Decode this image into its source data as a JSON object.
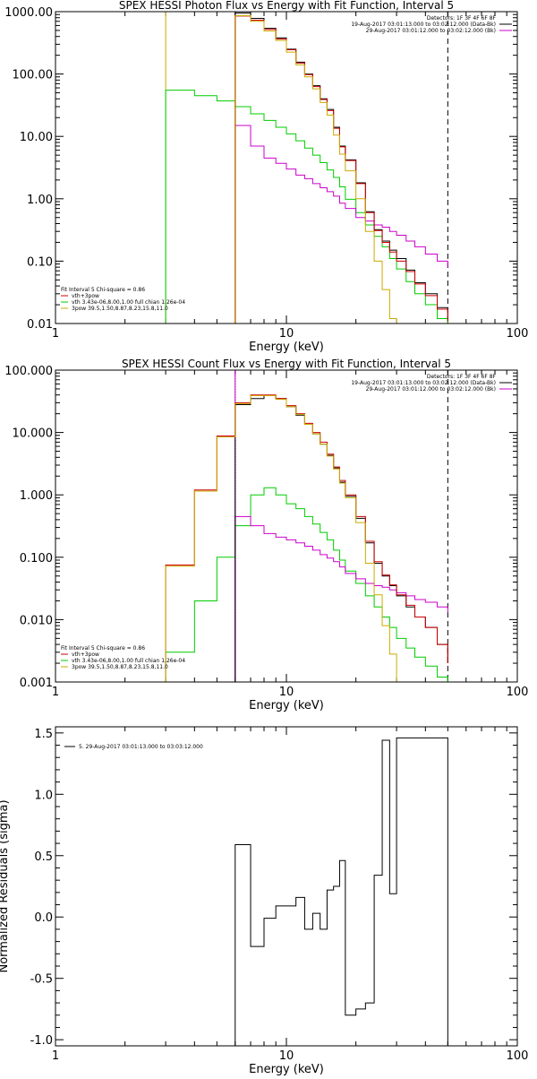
{
  "chart_data": [
    {
      "type": "line",
      "title": "SPEX HESSI Photon Flux vs Energy with Fit Function, Interval 5",
      "xlabel": "Energy (keV)",
      "ylabel": "",
      "x_scale": "log",
      "y_scale": "log",
      "xlim": [
        1,
        100
      ],
      "ylim": [
        0.01,
        1000
      ],
      "x_ticks": [
        {
          "value": 1,
          "label": "1"
        },
        {
          "value": 10,
          "label": "10"
        },
        {
          "value": 100,
          "label": "100"
        }
      ],
      "y_ticks": [
        {
          "value": 0.01,
          "label": "0.01"
        },
        {
          "value": 0.1,
          "label": "0.10"
        },
        {
          "value": 1,
          "label": "1.00"
        },
        {
          "value": 10,
          "label": "10.00"
        },
        {
          "value": 100,
          "label": "100.00"
        },
        {
          "value": 1000,
          "label": "1000.00"
        }
      ],
      "vertical_lines": [
        {
          "x": 3,
          "color": "#ccaa00",
          "style": "solid"
        },
        {
          "x": 6,
          "color": "#000000",
          "style": "dotted"
        },
        {
          "x": 6,
          "color": "#cc00cc",
          "style": "solid"
        },
        {
          "x": 50,
          "color": "#000000",
          "style": "dashed"
        }
      ],
      "legend_topright": [
        {
          "text": "Detectors: 1F 3F 4F 6F 8F",
          "color": "#000000"
        },
        {
          "text": "19-Aug-2017 03:01:13.000 to 03:02:12.000 (Data-Bk)",
          "color": "#000000",
          "swatch": "#000000"
        },
        {
          "text": "29-Aug-2017 03:01:12.000 to 03:02:12.000 (Bk)",
          "color": "#000000",
          "swatch": "#cc00cc"
        }
      ],
      "legend_bottomleft": [
        {
          "text": "Fit Interval 5   Chi-square = 0.86",
          "swatch": ""
        },
        {
          "text": "vth+3pow",
          "swatch": "#cc0000"
        },
        {
          "text": "vth 3.43e-06,8.00,1.00   full chian 1.26e-04",
          "swatch": "#00cc00"
        },
        {
          "text": "3pow 39.5,1.50,8.87,8.23,15.8,11.0",
          "swatch": "#ccaa00"
        }
      ],
      "series": [
        {
          "color": "#00cc00",
          "edges": [
            3,
            4,
            5,
            6,
            7,
            8,
            9,
            10,
            11,
            12,
            13,
            14,
            15,
            16,
            17,
            18,
            20,
            22,
            24,
            26,
            28,
            30,
            33,
            36,
            40,
            45,
            50
          ],
          "values": [
            55,
            45,
            37,
            30,
            23,
            18,
            14,
            11,
            8.5,
            6.5,
            5,
            3.8,
            2.9,
            2.2,
            1.55,
            0.98,
            0.6,
            0.38,
            0.25,
            0.17,
            0.11,
            0.075,
            0.047,
            0.03,
            0.02,
            0.012
          ]
        },
        {
          "color": "#cc00cc",
          "edges": [
            6,
            7,
            8,
            9,
            10,
            11,
            12,
            13,
            14,
            15,
            16,
            17,
            18,
            20,
            22,
            24,
            26,
            28,
            30,
            33,
            36,
            40,
            45,
            50
          ],
          "values": [
            15,
            7,
            4.5,
            3.7,
            3,
            2.4,
            2.1,
            1.75,
            1.5,
            1.3,
            1.1,
            0.85,
            0.7,
            0.5,
            0.44,
            0.38,
            0.35,
            0.3,
            0.26,
            0.21,
            0.17,
            0.13,
            0.1,
            0.08
          ]
        },
        {
          "color": "#000000",
          "edges": [
            6,
            7,
            8,
            9,
            10,
            11,
            12,
            13,
            14,
            15,
            16,
            17,
            18,
            20,
            22,
            24,
            26,
            28,
            30,
            33,
            36,
            40,
            45,
            50
          ],
          "values": [
            950,
            780,
            540,
            380,
            250,
            155,
            100,
            65,
            40,
            27,
            14,
            7,
            4.2,
            1.8,
            0.62,
            0.32,
            0.21,
            0.15,
            0.11,
            0.072,
            0.045,
            0.03,
            0.018,
            0.012
          ]
        },
        {
          "color": "#cc0000",
          "edges": [
            6,
            7,
            8,
            9,
            10,
            11,
            12,
            13,
            14,
            15,
            16,
            17,
            18,
            20,
            22,
            24,
            26,
            28,
            30,
            33,
            36,
            40,
            45,
            50
          ],
          "values": [
            850,
            730,
            520,
            365,
            245,
            150,
            98,
            63,
            39,
            26,
            13.5,
            6.8,
            4.1,
            1.75,
            0.6,
            0.31,
            0.2,
            0.14,
            0.1,
            0.068,
            0.043,
            0.028,
            0.017,
            0.011
          ]
        },
        {
          "color": "#ccaa00",
          "edges": [
            6,
            7,
            8,
            9,
            10,
            11,
            12,
            13,
            14,
            15,
            16,
            17,
            18,
            20,
            22,
            24,
            26,
            28,
            30
          ],
          "values": [
            860,
            700,
            490,
            345,
            225,
            140,
            90,
            58,
            35,
            22,
            10.5,
            5.2,
            2.8,
            1,
            0.3,
            0.1,
            0.035,
            0.012,
            0.005
          ]
        }
      ]
    },
    {
      "type": "line",
      "title": "SPEX HESSI Count Flux vs Energy with Fit Function, Interval 5",
      "xlabel": "Energy (keV)",
      "ylabel": "",
      "x_scale": "log",
      "y_scale": "log",
      "xlim": [
        1,
        100
      ],
      "ylim": [
        0.001,
        100
      ],
      "x_ticks": [
        {
          "value": 1,
          "label": "1"
        },
        {
          "value": 10,
          "label": "10"
        },
        {
          "value": 100,
          "label": "100"
        }
      ],
      "y_ticks": [
        {
          "value": 0.001,
          "label": "0.001"
        },
        {
          "value": 0.01,
          "label": "0.010"
        },
        {
          "value": 0.1,
          "label": "0.100"
        },
        {
          "value": 1,
          "label": "1.000"
        },
        {
          "value": 10,
          "label": "10.000"
        },
        {
          "value": 100,
          "label": "100.000"
        }
      ],
      "vertical_lines": [
        {
          "x": 6,
          "color": "#000000",
          "style": "dotted"
        },
        {
          "x": 6,
          "color": "#cc00cc",
          "style": "solid"
        },
        {
          "x": 50,
          "color": "#000000",
          "style": "dashed"
        }
      ],
      "legend_topright": [
        {
          "text": "Detectors: 1F 3F 4F 6F 8F",
          "color": "#000000"
        },
        {
          "text": "19-Aug-2017 03:01:13.000 to 03:02:12.000 (Data-Bk)",
          "color": "#000000",
          "swatch": "#000000"
        },
        {
          "text": "29-Aug-2017 03:01:12.000 to 03:02:12.000 (Bk)",
          "color": "#000000",
          "swatch": "#cc00cc"
        }
      ],
      "legend_bottomleft": [
        {
          "text": "Fit Interval 5   Chi-square = 0.86",
          "swatch": ""
        },
        {
          "text": "vth+3pow",
          "swatch": "#cc0000"
        },
        {
          "text": "vth 3.43e-06,8.00,1.00   full chian 1.26e-04",
          "swatch": "#00cc00"
        },
        {
          "text": "3pow 39.5,1.50,8.87,8.23,15.8,11.0",
          "swatch": "#ccaa00"
        }
      ],
      "series": [
        {
          "color": "#00cc00",
          "edges": [
            3,
            4,
            5,
            6,
            7,
            8,
            9,
            10,
            11,
            12,
            13,
            14,
            15,
            16,
            17,
            18,
            20,
            22,
            24,
            26,
            28,
            30,
            33,
            36,
            40,
            45,
            50
          ],
          "values": [
            0.003,
            0.02,
            0.1,
            0.32,
            1,
            1.3,
            1,
            0.72,
            0.6,
            0.45,
            0.34,
            0.25,
            0.19,
            0.13,
            0.09,
            0.06,
            0.038,
            0.024,
            0.016,
            0.011,
            0.0075,
            0.005,
            0.0035,
            0.0025,
            0.0018,
            0.0012
          ]
        },
        {
          "color": "#cc00cc",
          "edges": [
            6,
            7,
            8,
            9,
            10,
            11,
            12,
            13,
            14,
            15,
            16,
            17,
            18,
            20,
            22,
            24,
            26,
            28,
            30,
            33,
            36,
            40,
            45,
            50
          ],
          "values": [
            0.45,
            0.32,
            0.24,
            0.21,
            0.19,
            0.17,
            0.15,
            0.13,
            0.11,
            0.097,
            0.085,
            0.07,
            0.055,
            0.045,
            0.038,
            0.035,
            0.033,
            0.03,
            0.027,
            0.024,
            0.021,
            0.019,
            0.016,
            0.013
          ]
        },
        {
          "color": "#000000",
          "edges": [
            6,
            7,
            8,
            9,
            10,
            11,
            12,
            13,
            14,
            15,
            16,
            17,
            18,
            20,
            22,
            24,
            26,
            28,
            30,
            33,
            36,
            40,
            45,
            50
          ],
          "values": [
            28,
            35,
            39,
            35,
            26,
            19,
            13.5,
            9.5,
            6.5,
            4.3,
            2.7,
            1.6,
            0.95,
            0.42,
            0.17,
            0.08,
            0.05,
            0.035,
            0.024,
            0.016,
            0.011,
            0.0075,
            0.004,
            0.002
          ]
        },
        {
          "color": "#cc0000",
          "edges": [
            3,
            4,
            5,
            6,
            7,
            8,
            9,
            10,
            11,
            12,
            13,
            14,
            15,
            16,
            17,
            18,
            20,
            22,
            24,
            26,
            28,
            30,
            33,
            36,
            40,
            45,
            50
          ],
          "values": [
            0.075,
            1.2,
            8.8,
            30,
            40,
            40,
            35,
            27,
            20,
            14,
            10,
            7,
            4.5,
            2.8,
            1.7,
            1,
            0.45,
            0.18,
            0.085,
            0.052,
            0.036,
            0.025,
            0.017,
            0.011,
            0.0075,
            0.004,
            0.002
          ]
        },
        {
          "color": "#ccaa00",
          "edges": [
            3,
            4,
            5,
            6,
            7,
            8,
            9,
            10,
            11,
            12,
            13,
            14,
            15,
            16,
            17,
            18,
            20,
            22,
            24,
            26,
            28,
            30
          ],
          "values": [
            0.072,
            1.15,
            8.5,
            29,
            39,
            39,
            34,
            26,
            19.5,
            13.5,
            9.5,
            6.5,
            4.2,
            2.6,
            1.55,
            0.9,
            0.36,
            0.08,
            0.025,
            0.008,
            0.0028,
            0.001
          ]
        }
      ]
    },
    {
      "type": "line",
      "title": "",
      "xlabel": "Energy (keV)",
      "ylabel": "Normalized Residuals (sigma)",
      "x_scale": "log",
      "y_scale": "linear",
      "xlim": [
        1,
        100
      ],
      "ylim": [
        -1.05,
        1.55
      ],
      "x_ticks": [
        {
          "value": 1,
          "label": "1"
        },
        {
          "value": 10,
          "label": "10"
        },
        {
          "value": 100,
          "label": "100"
        }
      ],
      "y_ticks": [
        {
          "value": -1.0,
          "label": "-1.0"
        },
        {
          "value": -0.5,
          "label": "-0.5"
        },
        {
          "value": 0.0,
          "label": "0.0"
        },
        {
          "value": 0.5,
          "label": "0.5"
        },
        {
          "value": 1.0,
          "label": "1.0"
        },
        {
          "value": 1.5,
          "label": "1.5"
        }
      ],
      "legend_topleft": [
        {
          "text": "5. 29-Aug-2017 03:01:13.000 to 03:03:12.000",
          "swatch": "#000000"
        }
      ],
      "series": [
        {
          "color": "#000000",
          "edges": [
            6,
            7,
            8,
            9,
            10,
            11,
            12,
            13,
            14,
            15,
            16,
            17,
            18,
            20,
            22,
            24,
            26,
            28,
            30,
            33,
            36,
            40,
            45,
            50
          ],
          "values": [
            0.59,
            -0.24,
            -0.01,
            0.09,
            0.09,
            0.16,
            -0.1,
            0.03,
            -0.1,
            0.22,
            0.25,
            0.46,
            -0.8,
            -0.75,
            -0.7,
            0.34,
            1.44,
            0.19,
            1.46,
            1.46,
            1.46,
            1.46,
            1.46
          ]
        }
      ]
    }
  ]
}
